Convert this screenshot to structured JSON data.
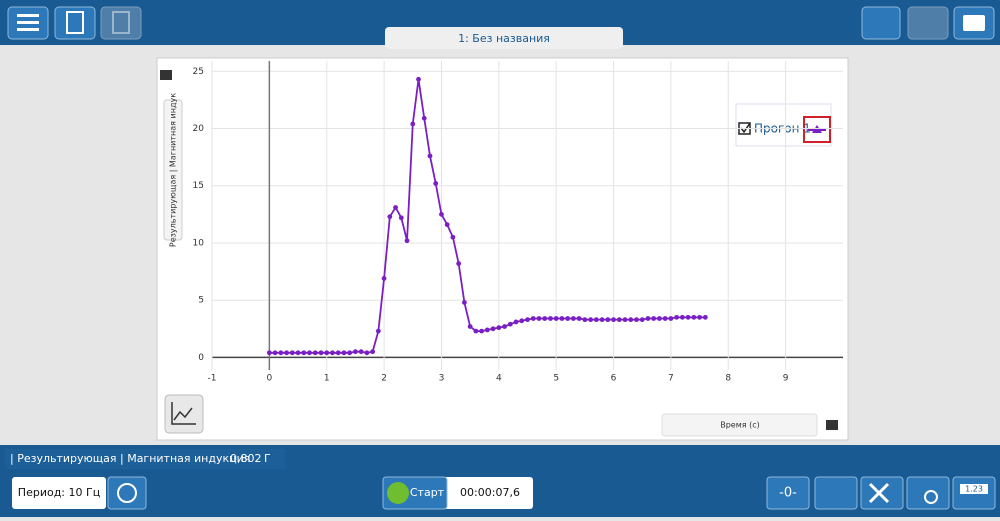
{
  "ui": {
    "tab": "1: Без названия",
    "status": "| Результирующая | Магнитная индукция",
    "status_value": "0,802",
    "status_unit": "Г",
    "period": "Период: 10 Гц",
    "start": "Старт",
    "time": "00:00:07,6",
    "zero": "-0-",
    "display": "1.23"
  },
  "chart_data": {
    "type": "line",
    "y_label": "Результирующая | Магнитная индук",
    "x_label": "Время (с)",
    "x": [
      0,
      0.1,
      0.2,
      0.3,
      0.4,
      0.5,
      0.6,
      0.7,
      0.8,
      0.9,
      1,
      1.1,
      1.2,
      1.3,
      1.4,
      1.5,
      1.6,
      1.7,
      1.8,
      1.9,
      2,
      2.1,
      2.2,
      2.3,
      2.4,
      2.5,
      2.6,
      2.7,
      2.8,
      2.9,
      3,
      3.1,
      3.2,
      3.3,
      3.4,
      3.5,
      3.6,
      3.7,
      3.8,
      3.9,
      4,
      4.1,
      4.2,
      4.3,
      4.4,
      4.5,
      4.6,
      4.7,
      4.8,
      4.9,
      5,
      5.1,
      5.2,
      5.3,
      5.4,
      5.5,
      5.6,
      5.7,
      5.8,
      5.9,
      6,
      6.1,
      6.2,
      6.3,
      6.4,
      6.5,
      6.6,
      6.7,
      6.8,
      6.9,
      7,
      7.1,
      7.2,
      7.3,
      7.4,
      7.5,
      7.6
    ],
    "series": [
      {
        "name": "Прогон 1",
        "color": "#7a1fc2",
        "values": [
          0.4,
          0.4,
          0.4,
          0.4,
          0.4,
          0.4,
          0.4,
          0.4,
          0.4,
          0.4,
          0.4,
          0.4,
          0.4,
          0.4,
          0.4,
          0.5,
          0.5,
          0.4,
          0.5,
          2.3,
          6.9,
          12.3,
          13.1,
          12.2,
          10.2,
          20.4,
          24.3,
          20.9,
          17.6,
          15.2,
          12.5,
          11.6,
          10.5,
          8.2,
          4.8,
          2.7,
          2.3,
          2.3,
          2.4,
          2.5,
          2.6,
          2.7,
          2.9,
          3.1,
          3.2,
          3.3,
          3.4,
          3.4,
          3.4,
          3.4,
          3.4,
          3.4,
          3.4,
          3.4,
          3.4,
          3.3,
          3.3,
          3.3,
          3.3,
          3.3,
          3.3,
          3.3,
          3.3,
          3.3,
          3.3,
          3.3,
          3.4,
          3.4,
          3.4,
          3.4,
          3.4,
          3.5,
          3.5,
          3.5,
          3.5,
          3.5,
          3.5
        ]
      }
    ],
    "xlim": [
      -1,
      10
    ],
    "xticks": [
      -1,
      0,
      1,
      2,
      3,
      4,
      5,
      6,
      7,
      8,
      9
    ],
    "ylim": [
      -1.1,
      25.9
    ],
    "yticks": [
      0,
      5,
      10,
      15,
      20,
      25
    ],
    "grid": true
  }
}
